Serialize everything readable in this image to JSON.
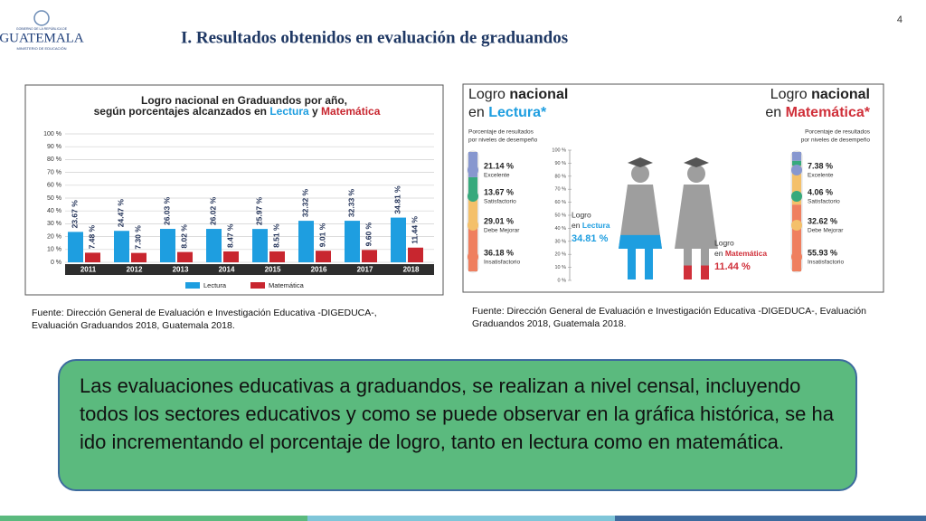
{
  "header": {
    "logo_top": "GOBIERNO DE LA REPÚBLICA DE",
    "logo_name": "GUATEMALA",
    "logo_bottom": "MINISTERIO DE EDUCACIÓN",
    "title": "I. Resultados obtenidos en evaluación de graduandos",
    "page_number": "4"
  },
  "chart_data": [
    {
      "type": "bar",
      "title_line1": "Logro nacional en Graduandos por año,",
      "title_line2": [
        "según porcentajes alcanzados en ",
        "Lectura",
        " y ",
        "Matemática"
      ],
      "categories": [
        "2011",
        "2012",
        "2013",
        "2014",
        "2015",
        "2016",
        "2017",
        "2018"
      ],
      "series": [
        {
          "name": "Lectura",
          "color": "#1e9ee0",
          "values": [
            23.67,
            24.47,
            26.03,
            26.02,
            25.97,
            32.32,
            32.33,
            34.81
          ],
          "value_labels": [
            "23.67 %",
            "24.47 %",
            "26.03 %",
            "26.02 %",
            "25.97 %",
            "32.32 %",
            "32.33 %",
            "34.81 %"
          ]
        },
        {
          "name": "Matemática",
          "color": "#c8262f",
          "values": [
            7.48,
            7.3,
            8.02,
            8.47,
            8.51,
            9.01,
            9.6,
            11.44
          ],
          "value_labels": [
            "7.48 %",
            "7.30 %",
            "8.02 %",
            "8.47 %",
            "8.51 %",
            "9.01 %",
            "9.60 %",
            "11.44 %"
          ]
        }
      ],
      "ylim": [
        0,
        100
      ],
      "yticks": [
        {
          "value": 0,
          "label": "0 %"
        },
        {
          "value": 10,
          "label": "10 %"
        },
        {
          "value": 20,
          "label": "20 %"
        },
        {
          "value": 30,
          "label": "30 %"
        },
        {
          "value": 40,
          "label": "40 %"
        },
        {
          "value": 50,
          "label": "50 %"
        },
        {
          "value": 60,
          "label": "60 %"
        },
        {
          "value": 70,
          "label": "70 %"
        },
        {
          "value": 80,
          "label": "80 %"
        },
        {
          "value": 90,
          "label": "90 %"
        },
        {
          "value": 100,
          "label": "100 %"
        }
      ],
      "grid": true
    },
    {
      "type": "infographic",
      "ylim": [
        0,
        100
      ],
      "yticks": [
        {
          "value": 0,
          "label": "0 %"
        },
        {
          "value": 10,
          "label": "10 %"
        },
        {
          "value": 20,
          "label": "20 %"
        },
        {
          "value": 30,
          "label": "30 %"
        },
        {
          "value": 40,
          "label": "40 %"
        },
        {
          "value": 50,
          "label": "50 %"
        },
        {
          "value": 60,
          "label": "60 %"
        },
        {
          "value": 70,
          "label": "70 %"
        },
        {
          "value": 80,
          "label": "80 %"
        },
        {
          "value": 90,
          "label": "90 %"
        },
        {
          "value": 100,
          "label": "100 %"
        }
      ],
      "subjects": [
        {
          "heading1": [
            "Logro ",
            "nacional"
          ],
          "heading2": [
            "en ",
            "Lectura*"
          ],
          "subtitle": [
            "Porcentaje de resultados",
            "por niveles de desempeño"
          ],
          "levels": [
            {
              "name": "Excelente",
              "value": 21.14,
              "label": "21.14 %",
              "color": "#8797cf"
            },
            {
              "name": "Satisfactorio",
              "value": 13.67,
              "label": "13.67 %",
              "color": "#36a97c"
            },
            {
              "name": "Debe Mejorar",
              "value": 29.01,
              "label": "29.01 %",
              "color": "#f4c06a"
            },
            {
              "name": "Insatisfactorio",
              "value": 36.18,
              "label": "36.18 %",
              "color": "#ef7f5f"
            }
          ],
          "logro_label": [
            "Logro",
            "en ",
            "Lectura"
          ],
          "logro": 34.81,
          "logro_value_label": "34.81 %",
          "color": "#1e9ee0"
        },
        {
          "heading1": [
            "Logro ",
            "nacional"
          ],
          "heading2": [
            "en ",
            "Matemática*"
          ],
          "subtitle": [
            "Porcentaje de resultados",
            "por niveles de desempeño"
          ],
          "levels": [
            {
              "name": "Excelente",
              "value": 7.38,
              "label": "7.38 %",
              "color": "#8797cf"
            },
            {
              "name": "Satisfactorio",
              "value": 4.06,
              "label": "4.06 %",
              "color": "#36a97c"
            },
            {
              "name": "Debe Mejorar",
              "value": 32.62,
              "label": "32.62 %",
              "color": "#f4c06a"
            },
            {
              "name": "Insatisfactorio",
              "value": 55.93,
              "label": "55.93 %",
              "color": "#ef7f5f"
            }
          ],
          "logro_label": [
            "Logro",
            "en ",
            "Matemática"
          ],
          "logro": 11.44,
          "logro_value_label": "11.44 %",
          "color": "#d0303a"
        }
      ]
    }
  ],
  "sources": [
    "Fuente: Dirección General de Evaluación e Investigación Educativa -DIGEDUCA-, Evaluación Graduandos 2018, Guatemala 2018.",
    "Fuente: Dirección General de Evaluación e Investigación Educativa -DIGEDUCA-, Evaluación Graduandos 2018, Guatemala 2018."
  ],
  "note": "Las evaluaciones educativas a graduandos, se realizan a nivel censal, incluyendo todos los sectores educativos y como se puede observar en la gráfica histórica, se ha ido incrementando el porcentaje de logro, tanto en lectura como en matemática."
}
